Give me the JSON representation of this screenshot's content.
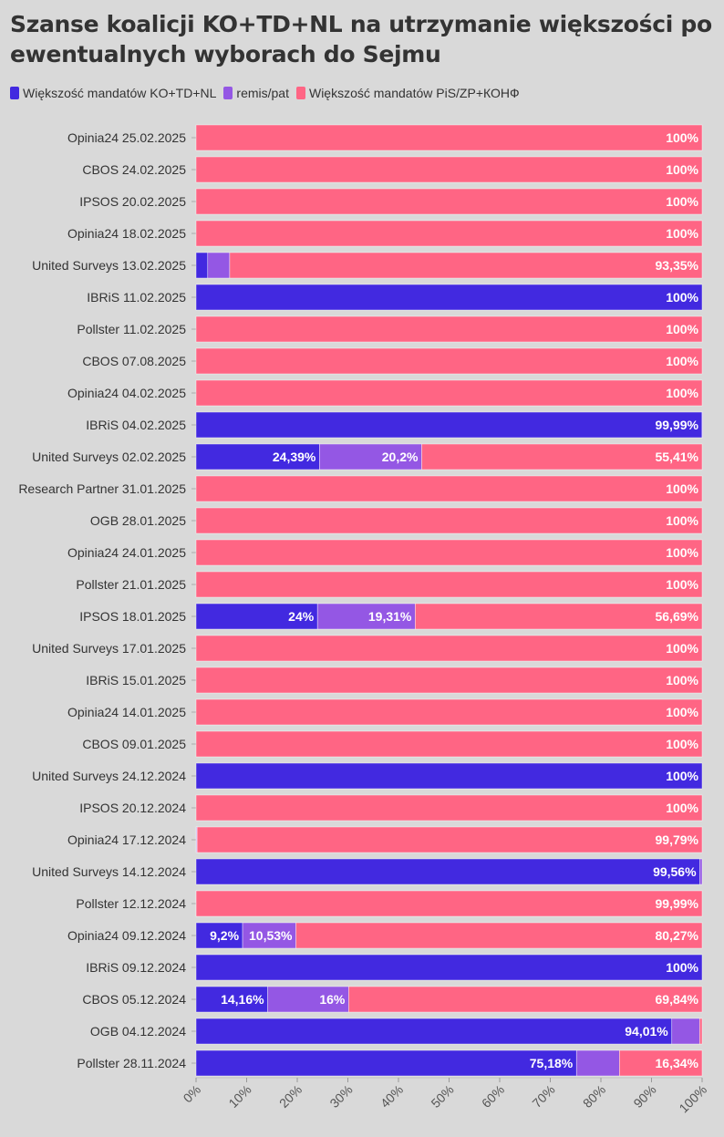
{
  "chart_data": {
    "type": "bar",
    "stacked": true,
    "orientation": "horizontal",
    "title": "Szanse koalicji KO+TD+NL na utrzymanie większości po ewentualnych wyborach do Sejmu",
    "colors": {
      "ko": "#4229e0",
      "remis": "#9457e4",
      "pis": "#ff6584",
      "grid": "#c4c4c4",
      "text": "#333333"
    },
    "legend": [
      "Większość mandatów KO+TD+NL",
      "remis/pat",
      "Większość mandatów PiS/ZP+КОНФ"
    ],
    "legend_placement": "top-left",
    "xlim": [
      0,
      100
    ],
    "x_ticks": [
      "0%",
      "10%",
      "20%",
      "30%",
      "40%",
      "50%",
      "60%",
      "70%",
      "80%",
      "90%",
      "100%"
    ],
    "categories": [
      "Opinia24 25.02.2025",
      "CBOS 24.02.2025",
      "IPSOS 20.02.2025",
      "Opinia24 18.02.2025",
      "United Surveys 13.02.2025",
      "IBRiS 11.02.2025",
      "Pollster 11.02.2025",
      "CBOS 07.08.2025",
      "Opinia24 04.02.2025",
      "IBRiS 04.02.2025",
      "United Surveys 02.02.2025",
      "Research Partner 31.01.2025",
      "OGB 28.01.2025",
      "Opinia24 24.01.2025",
      "Pollster 21.01.2025",
      "IPSOS 18.01.2025",
      "United Surveys 17.01.2025",
      "IBRiS 15.01.2025",
      "Opinia24 14.01.2025",
      "CBOS 09.01.2025",
      "United Surveys 24.12.2024",
      "IPSOS 20.12.2024",
      "Opinia24 17.12.2024",
      "United Surveys 14.12.2024",
      "Pollster 12.12.2024",
      "Opinia24 09.12.2024",
      "IBRiS 09.12.2024",
      "CBOS 05.12.2024",
      "OGB 04.12.2024",
      "Pollster 28.11.2024"
    ],
    "series": [
      {
        "name": "Większość mandatów KO+TD+NL",
        "values": [
          0,
          0,
          0,
          0,
          2.3,
          100,
          0,
          0,
          0,
          99.99,
          24.39,
          0,
          0,
          0,
          0,
          24,
          0,
          0,
          0,
          0,
          100,
          0,
          0.1,
          99.56,
          0.01,
          9.2,
          100,
          14.16,
          94.01,
          75.18
        ],
        "labels": [
          "",
          "",
          "",
          "",
          "",
          "100%",
          "",
          "",
          "",
          "99,99%",
          "24,39%",
          "",
          "",
          "",
          "",
          "24%",
          "",
          "",
          "",
          "",
          "100%",
          "",
          "",
          "99,56%",
          "",
          "9,2%",
          "100%",
          "14,16%",
          "94,01%",
          "75,18%"
        ]
      },
      {
        "name": "remis/pat",
        "values": [
          0,
          0,
          0,
          0,
          4.35,
          0,
          0,
          0,
          0,
          0.01,
          20.2,
          0,
          0,
          0,
          0,
          19.31,
          0,
          0,
          0,
          0,
          0,
          0,
          0.11,
          0.44,
          0,
          10.53,
          0,
          16,
          5.5,
          8.48
        ],
        "labels": [
          "",
          "",
          "",
          "",
          "",
          "",
          "",
          "",
          "",
          "",
          "20,2%",
          "",
          "",
          "",
          "",
          "19,31%",
          "",
          "",
          "",
          "",
          "",
          "",
          "",
          "",
          "",
          "10,53%",
          "",
          "16%",
          "",
          ""
        ]
      },
      {
        "name": "Większość mandatów PiS/ZP+КОНФ",
        "values": [
          100,
          100,
          100,
          100,
          93.35,
          0,
          100,
          100,
          100,
          0,
          55.41,
          100,
          100,
          100,
          100,
          56.69,
          100,
          100,
          100,
          100,
          0,
          100,
          99.79,
          0,
          99.99,
          80.27,
          0,
          69.84,
          0.49,
          16.34
        ],
        "labels": [
          "100%",
          "100%",
          "100%",
          "100%",
          "93,35%",
          "",
          "100%",
          "100%",
          "100%",
          "",
          "55,41%",
          "100%",
          "100%",
          "100%",
          "100%",
          "56,69%",
          "100%",
          "100%",
          "100%",
          "100%",
          "",
          "100%",
          "99,79%",
          "",
          "99,99%",
          "80,27%",
          "",
          "69,84%",
          "",
          "16,34%"
        ]
      }
    ]
  }
}
